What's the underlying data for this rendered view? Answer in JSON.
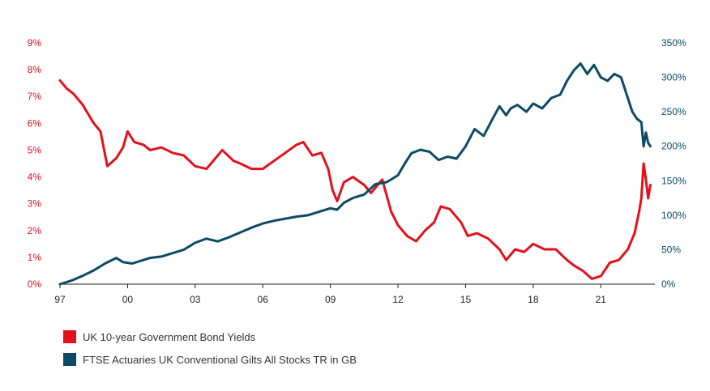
{
  "colors": {
    "yields": "#e3111b",
    "gilts": "#0c4a63",
    "axis": "#222222"
  },
  "legend": {
    "yields_label": "UK 10-year Government Bond Yields",
    "gilts_label": "FTSE Actuaries UK Conventional Gilts All Stocks TR in GB"
  },
  "chart_data": {
    "type": "line",
    "x_ticks": [
      "97",
      "00",
      "03",
      "06",
      "09",
      "12",
      "15",
      "18",
      "21"
    ],
    "x_tick_values": [
      1997,
      2000,
      2003,
      2006,
      2009,
      2012,
      2015,
      2018,
      2021
    ],
    "xlim": [
      1997,
      2023.4
    ],
    "y_left_ticks": [
      "0%",
      "1%",
      "2%",
      "3%",
      "4%",
      "5%",
      "6%",
      "7%",
      "8%",
      "9%"
    ],
    "y_left_lim": [
      0,
      9
    ],
    "y_right_ticks": [
      "0%",
      "50%",
      "100%",
      "150%",
      "200%",
      "250%",
      "300%",
      "350%"
    ],
    "y_right_lim": [
      0,
      350
    ],
    "grid": false,
    "series": [
      {
        "name": "UK 10-year Government Bond Yields",
        "axis": "left",
        "color": "#e3111b",
        "x": [
          1997.0,
          1997.3,
          1997.6,
          1998.0,
          1998.5,
          1998.8,
          1999.1,
          1999.5,
          1999.8,
          2000.0,
          2000.3,
          2000.7,
          2001.0,
          2001.5,
          2002.0,
          2002.5,
          2003.0,
          2003.5,
          2003.8,
          2004.2,
          2004.7,
          2005.0,
          2005.5,
          2006.0,
          2006.5,
          2007.0,
          2007.5,
          2007.8,
          2008.2,
          2008.6,
          2008.9,
          2009.1,
          2009.3,
          2009.6,
          2010.0,
          2010.5,
          2010.8,
          2011.3,
          2011.7,
          2012.0,
          2012.4,
          2012.8,
          2013.2,
          2013.6,
          2013.9,
          2014.3,
          2014.8,
          2015.1,
          2015.5,
          2016.0,
          2016.5,
          2016.8,
          2017.2,
          2017.6,
          2018.0,
          2018.5,
          2019.0,
          2019.5,
          2019.8,
          2020.2,
          2020.6,
          2021.0,
          2021.4,
          2021.8,
          2022.2,
          2022.5,
          2022.7,
          2022.8,
          2022.9,
          2023.0,
          2023.1,
          2023.2
        ],
        "y": [
          7.6,
          7.3,
          7.1,
          6.7,
          6.0,
          5.7,
          4.4,
          4.7,
          5.1,
          5.7,
          5.3,
          5.2,
          5.0,
          5.1,
          4.9,
          4.8,
          4.4,
          4.3,
          4.6,
          5.0,
          4.6,
          4.5,
          4.3,
          4.3,
          4.6,
          4.9,
          5.2,
          5.3,
          4.8,
          4.9,
          4.3,
          3.5,
          3.1,
          3.8,
          4.0,
          3.7,
          3.4,
          3.9,
          2.7,
          2.2,
          1.8,
          1.6,
          2.0,
          2.3,
          2.9,
          2.8,
          2.3,
          1.8,
          1.9,
          1.7,
          1.3,
          0.9,
          1.3,
          1.2,
          1.5,
          1.3,
          1.3,
          0.9,
          0.7,
          0.5,
          0.2,
          0.3,
          0.8,
          0.9,
          1.3,
          1.9,
          2.7,
          3.2,
          4.5,
          3.9,
          3.2,
          3.7
        ]
      },
      {
        "name": "FTSE Actuaries UK Conventional Gilts All Stocks TR in GB",
        "axis": "right",
        "color": "#0c4a63",
        "x": [
          1997.0,
          1997.5,
          1998.0,
          1998.5,
          1999.0,
          1999.5,
          1999.8,
          2000.2,
          2000.6,
          2001.0,
          2001.5,
          2002.0,
          2002.5,
          2003.0,
          2003.5,
          2004.0,
          2004.5,
          2005.0,
          2005.5,
          2006.0,
          2006.5,
          2007.0,
          2007.5,
          2008.0,
          2008.5,
          2009.0,
          2009.3,
          2009.6,
          2010.0,
          2010.5,
          2011.0,
          2011.5,
          2012.0,
          2012.3,
          2012.6,
          2013.0,
          2013.4,
          2013.8,
          2014.2,
          2014.6,
          2015.0,
          2015.4,
          2015.8,
          2016.2,
          2016.5,
          2016.8,
          2017.0,
          2017.3,
          2017.7,
          2018.0,
          2018.4,
          2018.8,
          2019.2,
          2019.5,
          2019.8,
          2020.1,
          2020.4,
          2020.7,
          2021.0,
          2021.3,
          2021.6,
          2021.9,
          2022.2,
          2022.4,
          2022.6,
          2022.8,
          2022.9,
          2023.0,
          2023.1,
          2023.2
        ],
        "y": [
          0,
          5,
          12,
          20,
          30,
          38,
          32,
          30,
          34,
          38,
          40,
          45,
          50,
          60,
          66,
          62,
          68,
          75,
          82,
          88,
          92,
          95,
          98,
          100,
          105,
          110,
          108,
          118,
          125,
          130,
          145,
          148,
          158,
          175,
          190,
          195,
          192,
          180,
          185,
          182,
          200,
          225,
          215,
          240,
          258,
          245,
          255,
          260,
          250,
          262,
          255,
          270,
          275,
          295,
          310,
          320,
          305,
          318,
          300,
          295,
          305,
          300,
          270,
          250,
          240,
          235,
          200,
          220,
          205,
          200
        ]
      }
    ]
  }
}
